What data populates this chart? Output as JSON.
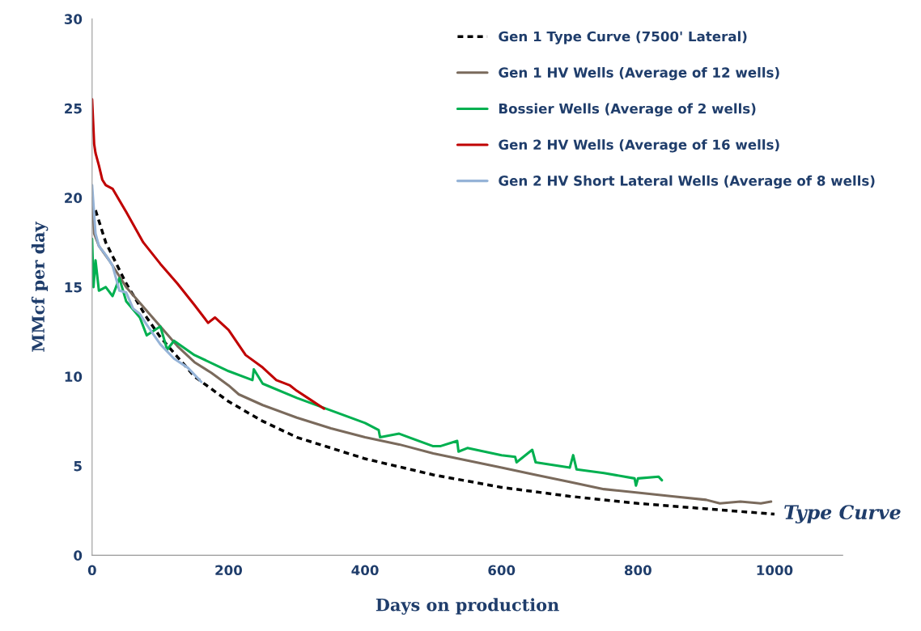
{
  "chart_data": {
    "type": "line",
    "xlabel": "Days on production",
    "ylabel": "MMcf per day",
    "xlim": [
      0,
      1100
    ],
    "ylim": [
      0,
      30
    ],
    "xticks": [
      0,
      200,
      400,
      600,
      800,
      1000
    ],
    "yticks": [
      0,
      5,
      10,
      15,
      20,
      25,
      30
    ],
    "grid": false,
    "legend": "top right",
    "annotations": [
      {
        "text": "Type Curve",
        "x": 1000,
        "y": 2.3
      }
    ],
    "series": [
      {
        "name": "Gen 1 Type Curve (7500' Lateral)",
        "color": "#000000",
        "line_style": "dashed",
        "x": [
          5,
          20,
          50,
          80,
          100,
          150,
          200,
          250,
          300,
          400,
          500,
          600,
          700,
          800,
          900,
          1000
        ],
        "values": [
          19.3,
          17.5,
          15.2,
          13.3,
          12.2,
          10.0,
          8.6,
          7.5,
          6.6,
          5.4,
          4.5,
          3.8,
          3.3,
          2.9,
          2.6,
          2.3
        ]
      },
      {
        "name": "Gen 1 HV Wells (Average of 12 wells)",
        "color": "#7a6a5c",
        "line_style": "solid",
        "x": [
          0,
          3,
          10,
          25,
          50,
          75,
          100,
          125,
          150,
          175,
          200,
          215,
          250,
          300,
          350,
          400,
          450,
          500,
          550,
          600,
          650,
          700,
          750,
          800,
          850,
          900,
          920,
          950,
          980,
          995
        ],
        "values": [
          20.0,
          18.0,
          17.3,
          16.5,
          15.0,
          13.9,
          12.8,
          11.7,
          10.8,
          10.2,
          9.5,
          9.0,
          8.4,
          7.7,
          7.1,
          6.6,
          6.2,
          5.7,
          5.3,
          4.9,
          4.5,
          4.1,
          3.7,
          3.5,
          3.3,
          3.1,
          2.9,
          3.0,
          2.9,
          3.0
        ]
      },
      {
        "name": "Bossier Wells (Average of 2 wells)",
        "color": "#00b050",
        "line_style": "solid",
        "x": [
          0,
          2,
          5,
          10,
          20,
          30,
          40,
          50,
          70,
          80,
          100,
          110,
          120,
          150,
          200,
          235,
          237,
          250,
          300,
          350,
          400,
          420,
          422,
          450,
          500,
          510,
          535,
          537,
          550,
          600,
          620,
          622,
          645,
          650,
          700,
          705,
          710,
          750,
          795,
          797,
          800,
          830,
          835
        ],
        "values": [
          17.7,
          15.0,
          16.5,
          14.8,
          15.0,
          14.5,
          15.5,
          14.2,
          13.3,
          12.3,
          12.8,
          11.5,
          12.0,
          11.2,
          10.3,
          9.8,
          10.4,
          9.6,
          8.8,
          8.1,
          7.4,
          7.0,
          6.6,
          6.8,
          6.1,
          6.1,
          6.4,
          5.8,
          6.0,
          5.6,
          5.5,
          5.2,
          5.9,
          5.2,
          4.9,
          5.6,
          4.8,
          4.6,
          4.3,
          3.9,
          4.3,
          4.4,
          4.2
        ]
      },
      {
        "name": "Gen 2 HV Wells (Average of 16 wells)",
        "color": "#c00000",
        "line_style": "solid",
        "x": [
          0,
          3,
          5,
          10,
          15,
          20,
          30,
          50,
          75,
          100,
          125,
          150,
          170,
          180,
          200,
          225,
          250,
          270,
          290,
          300,
          320,
          340
        ],
        "values": [
          25.5,
          23.0,
          22.5,
          21.8,
          21.0,
          20.7,
          20.5,
          19.2,
          17.5,
          16.3,
          15.2,
          14.0,
          13.0,
          13.3,
          12.6,
          11.2,
          10.5,
          9.8,
          9.5,
          9.2,
          8.7,
          8.2
        ]
      },
      {
        "name": "Gen 2 HV Short Lateral Wells (Average of 8 wells)",
        "color": "#95b3d7",
        "line_style": "solid",
        "x": [
          0,
          5,
          10,
          20,
          30,
          40,
          50,
          60,
          70,
          80,
          100,
          120,
          140,
          160
        ],
        "values": [
          20.7,
          18.0,
          17.3,
          16.8,
          16.2,
          14.8,
          14.7,
          13.8,
          13.5,
          12.9,
          11.8,
          11.0,
          10.5,
          9.7
        ]
      }
    ]
  }
}
